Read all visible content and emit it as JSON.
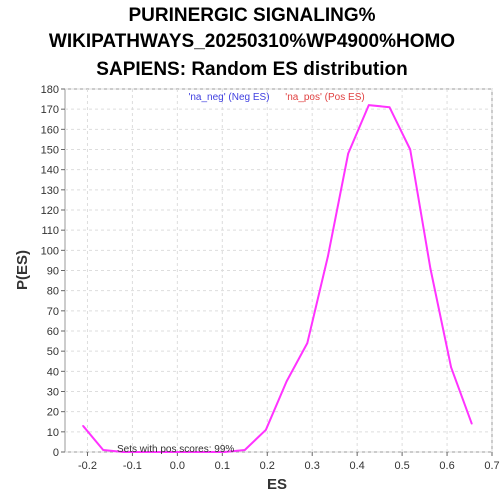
{
  "chart_data": {
    "type": "line",
    "title_lines": [
      "PURINERGIC SIGNALING%",
      "WIKIPATHWAYS_20250310%WP4900%HOMO",
      "SAPIENS: Random ES distribution"
    ],
    "xlabel": "ES",
    "ylabel": "P(ES)",
    "xlim": [
      -0.25,
      0.7
    ],
    "ylim": [
      0,
      180
    ],
    "xticks": [
      -0.2,
      -0.1,
      0.0,
      0.1,
      0.2,
      0.3,
      0.4,
      0.5,
      0.6,
      0.7
    ],
    "yticks": [
      0,
      10,
      20,
      30,
      40,
      50,
      60,
      70,
      80,
      90,
      100,
      110,
      120,
      130,
      140,
      150,
      160,
      170,
      180
    ],
    "grid": true,
    "legend": [
      {
        "label": "'na_neg' (Neg ES)",
        "color": "#4040e0"
      },
      {
        "label": "'na_pos' (Pos ES)",
        "color": "#e04040"
      }
    ],
    "annotation": "Sets with pos scores: 99%",
    "series": [
      {
        "color": "#ff33ff",
        "x": [
          -0.21,
          -0.165,
          -0.12,
          -0.075,
          -0.03,
          0.015,
          0.06,
          0.105,
          0.15,
          0.197,
          0.243,
          0.289,
          0.335,
          0.38,
          0.426,
          0.472,
          0.518,
          0.563,
          0.609,
          0.655
        ],
        "y": [
          13,
          1,
          0,
          0,
          0,
          0,
          0,
          0,
          1,
          11,
          35,
          54,
          97,
          148,
          172,
          171,
          150,
          91,
          42,
          14
        ]
      }
    ]
  }
}
